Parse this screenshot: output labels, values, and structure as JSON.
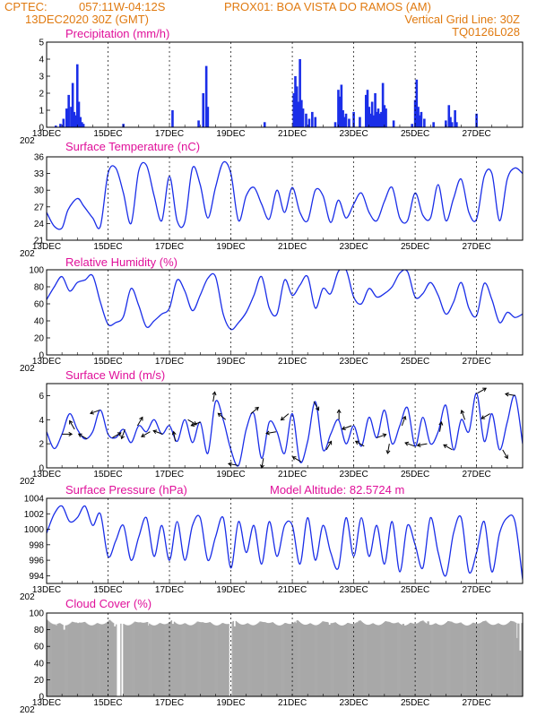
{
  "header": {
    "source": "CPTEC:",
    "coords": "057:11W-04:12S",
    "station": "PROX01: BOA VISTA DO RAMOS (AM)",
    "init_date": "13DEC2020 30Z (GMT)",
    "grid_note": "Vertical Grid Line: 30Z",
    "model_code": "TQ0126L028"
  },
  "colors": {
    "series": "#1a2ee8",
    "cloud": "#a8a8a8",
    "title": "#e0109a",
    "header": "#e07a10"
  },
  "x_labels": [
    "13DEC",
    "15DEC",
    "17DEC",
    "19DEC",
    "21DEC",
    "23DEC",
    "25DEC",
    "27DEC"
  ],
  "year_stub": "202",
  "chart_data": [
    {
      "type": "bar",
      "title": "Precipitation (mm/h)",
      "ylim": [
        0,
        5
      ],
      "yticks": [
        "0",
        "1",
        "2",
        "3",
        "4",
        "5"
      ],
      "x_start": 0,
      "x_end": 15.5,
      "events": [
        [
          0.3,
          0.1
        ],
        [
          0.45,
          0.2
        ],
        [
          0.55,
          0.5
        ],
        [
          0.65,
          1.1
        ],
        [
          0.72,
          1.9
        ],
        [
          0.8,
          1.2
        ],
        [
          0.85,
          2.6
        ],
        [
          0.9,
          0.9
        ],
        [
          0.95,
          0.7
        ],
        [
          1.0,
          3.7
        ],
        [
          1.05,
          1.5
        ],
        [
          1.1,
          0.6
        ],
        [
          1.15,
          0.3
        ],
        [
          1.2,
          0.2
        ],
        [
          2.5,
          0.2
        ],
        [
          4.1,
          1.0
        ],
        [
          4.95,
          0.4
        ],
        [
          5.1,
          2.0
        ],
        [
          5.2,
          3.6
        ],
        [
          5.25,
          1.2
        ],
        [
          7.1,
          0.3
        ],
        [
          8.05,
          2.0
        ],
        [
          8.1,
          3.0
        ],
        [
          8.15,
          2.4
        ],
        [
          8.2,
          1.5
        ],
        [
          8.25,
          4.0
        ],
        [
          8.3,
          1.6
        ],
        [
          8.35,
          1.1
        ],
        [
          8.45,
          0.8
        ],
        [
          8.55,
          0.5
        ],
        [
          8.65,
          0.9
        ],
        [
          8.75,
          0.6
        ],
        [
          9.4,
          0.3
        ],
        [
          9.5,
          2.2
        ],
        [
          9.55,
          1.8
        ],
        [
          9.6,
          2.5
        ],
        [
          9.65,
          1.0
        ],
        [
          9.7,
          0.6
        ],
        [
          9.75,
          0.8
        ],
        [
          9.85,
          0.5
        ],
        [
          10.0,
          0.9
        ],
        [
          10.2,
          0.6
        ],
        [
          10.4,
          1.9
        ],
        [
          10.45,
          2.2
        ],
        [
          10.5,
          1.2
        ],
        [
          10.55,
          0.8
        ],
        [
          10.6,
          1.5
        ],
        [
          10.65,
          0.7
        ],
        [
          10.7,
          2.0
        ],
        [
          10.75,
          0.9
        ],
        [
          10.8,
          1.1
        ],
        [
          10.85,
          0.8
        ],
        [
          10.9,
          0.9
        ],
        [
          10.95,
          2.6
        ],
        [
          11.0,
          1.3
        ],
        [
          11.05,
          1.1
        ],
        [
          11.3,
          0.4
        ],
        [
          11.9,
          0.2
        ],
        [
          12.0,
          1.6
        ],
        [
          12.05,
          2.8
        ],
        [
          12.1,
          1.2
        ],
        [
          12.15,
          0.7
        ],
        [
          12.2,
          0.9
        ],
        [
          12.3,
          0.5
        ],
        [
          12.6,
          0.3
        ],
        [
          13.0,
          0.4
        ],
        [
          13.1,
          1.3
        ],
        [
          13.15,
          0.6
        ],
        [
          13.2,
          0.3
        ],
        [
          13.3,
          1.0
        ],
        [
          13.35,
          0.3
        ],
        [
          14.0,
          0.8
        ]
      ]
    },
    {
      "type": "line",
      "title": "Surface Temperature (nC)",
      "ylim": [
        21,
        36
      ],
      "yticks": [
        "21",
        "24",
        "27",
        "30",
        "33",
        "36"
      ],
      "x": [
        0.0,
        0.25,
        0.5,
        0.7,
        1.0,
        1.2,
        1.5,
        1.75,
        2.0,
        2.25,
        2.5,
        2.75,
        3.0,
        3.25,
        3.5,
        3.75,
        4.0,
        4.25,
        4.5,
        4.75,
        5.0,
        5.25,
        5.5,
        5.75,
        6.0,
        6.25,
        6.5,
        6.75,
        7.0,
        7.25,
        7.5,
        7.75,
        8.0,
        8.25,
        8.5,
        8.75,
        9.0,
        9.25,
        9.5,
        9.75,
        10.0,
        10.25,
        10.5,
        10.75,
        11.0,
        11.25,
        11.5,
        11.75,
        12.0,
        12.25,
        12.5,
        12.75,
        13.0,
        13.25,
        13.5,
        13.75,
        14.0,
        14.25,
        14.5,
        14.75,
        15.0,
        15.25,
        15.5
      ],
      "series": [
        {
          "values": [
            26.0,
            23.5,
            23.2,
            26.5,
            28.5,
            27.2,
            25.0,
            23.5,
            33.0,
            34.0,
            29.5,
            24.0,
            33.5,
            34.5,
            29.0,
            24.5,
            32.5,
            24.5,
            24.3,
            34.0,
            31.0,
            25.0,
            30.5,
            35.0,
            33.0,
            24.5,
            29.0,
            30.5,
            27.5,
            24.8,
            30.0,
            26.0,
            30.5,
            26.0,
            24.5,
            30.0,
            29.0,
            24.2,
            28.2,
            25.0,
            27.5,
            29.5,
            26.0,
            24.5,
            28.0,
            30.5,
            25.0,
            24.5,
            29.5,
            25.5,
            25.0,
            31.0,
            24.5,
            28.5,
            32.0,
            26.0,
            24.8,
            32.5,
            33.0,
            24.5,
            32.0,
            34.0,
            33.0
          ]
        }
      ]
    },
    {
      "type": "line",
      "title": "Relative Humidity (%)",
      "ylim": [
        0,
        100
      ],
      "yticks": [
        "0",
        "20",
        "40",
        "60",
        "80",
        "100"
      ],
      "x": [
        0.0,
        0.25,
        0.5,
        0.75,
        1.0,
        1.25,
        1.5,
        1.75,
        2.0,
        2.25,
        2.5,
        2.75,
        3.0,
        3.25,
        3.5,
        3.75,
        4.0,
        4.25,
        4.5,
        4.75,
        5.0,
        5.25,
        5.5,
        5.75,
        6.0,
        6.25,
        6.5,
        6.75,
        7.0,
        7.25,
        7.5,
        7.75,
        8.0,
        8.25,
        8.5,
        8.75,
        9.0,
        9.25,
        9.5,
        9.75,
        10.0,
        10.25,
        10.5,
        10.75,
        11.0,
        11.25,
        11.5,
        11.75,
        12.0,
        12.25,
        12.5,
        12.75,
        13.0,
        13.25,
        13.5,
        13.75,
        14.0,
        14.25,
        14.5,
        14.75,
        15.0,
        15.25,
        15.5
      ],
      "series": [
        {
          "values": [
            65,
            80,
            92,
            75,
            85,
            88,
            93,
            62,
            36,
            38,
            45,
            78,
            58,
            33,
            40,
            48,
            55,
            88,
            75,
            52,
            70,
            90,
            92,
            48,
            30,
            38,
            50,
            70,
            92,
            55,
            48,
            88,
            70,
            82,
            92,
            55,
            78,
            72,
            98,
            100,
            68,
            60,
            78,
            68,
            72,
            80,
            96,
            98,
            68,
            72,
            85,
            70,
            48,
            62,
            85,
            55,
            46,
            84,
            65,
            38,
            50,
            44,
            48
          ]
        }
      ]
    },
    {
      "type": "line",
      "title": "Surface Wind (m/s)",
      "ylim": [
        0,
        7
      ],
      "yticks": [
        "0",
        "2",
        "4",
        "6"
      ],
      "x": [
        0.0,
        0.25,
        0.5,
        0.75,
        1.0,
        1.25,
        1.5,
        1.75,
        2.0,
        2.25,
        2.5,
        2.75,
        3.0,
        3.25,
        3.5,
        3.75,
        4.0,
        4.25,
        4.5,
        4.75,
        5.0,
        5.25,
        5.5,
        5.75,
        6.0,
        6.25,
        6.5,
        6.75,
        7.0,
        7.25,
        7.5,
        7.75,
        8.0,
        8.25,
        8.5,
        8.75,
        9.0,
        9.25,
        9.5,
        9.75,
        10.0,
        10.25,
        10.5,
        10.75,
        11.0,
        11.25,
        11.5,
        11.75,
        12.0,
        12.25,
        12.5,
        12.75,
        13.0,
        13.25,
        13.5,
        13.75,
        14.0,
        14.25,
        14.5,
        14.75,
        15.0,
        15.25,
        15.5
      ],
      "series": [
        {
          "values": [
            3.0,
            1.6,
            2.8,
            4.5,
            3.2,
            2.4,
            3.0,
            4.8,
            2.8,
            2.5,
            3.2,
            2.1,
            3.5,
            3.0,
            4.0,
            2.8,
            3.5,
            2.2,
            4.0,
            2.1,
            3.8,
            1.2,
            5.5,
            4.0,
            1.5,
            0.2,
            3.2,
            4.5,
            0.8,
            3.8,
            3.0,
            1.2,
            4.5,
            0.5,
            2.2,
            5.5,
            1.5,
            2.8,
            4.0,
            2.0,
            3.5,
            1.8,
            4.2,
            2.5,
            4.8,
            2.0,
            3.5,
            5.0,
            1.8,
            4.2,
            2.0,
            3.0,
            5.2,
            1.5,
            4.0,
            3.0,
            6.2,
            2.2,
            4.5,
            1.5,
            3.8,
            6.0,
            2.0
          ]
        }
      ],
      "vector_dirs_deg": [
        0,
        120,
        150,
        200,
        30,
        250,
        60,
        210,
        160,
        100,
        330,
        200,
        80,
        140,
        170,
        40,
        260,
        190,
        220,
        150,
        300,
        60,
        90,
        200,
        150,
        20,
        260,
        70,
        160,
        190,
        80,
        150,
        110,
        30,
        210,
        300,
        170,
        230
      ]
    },
    {
      "type": "line",
      "title": "Surface Pressure (hPa)",
      "subtitle": "Model Altitude: 82.5724 m",
      "ylim": [
        993,
        1004
      ],
      "yticks": [
        "994",
        "996",
        "998",
        "1000",
        "1002",
        "1004"
      ],
      "x": [
        0.0,
        0.25,
        0.5,
        0.75,
        1.0,
        1.25,
        1.5,
        1.75,
        2.0,
        2.25,
        2.5,
        2.75,
        3.0,
        3.25,
        3.5,
        3.75,
        4.0,
        4.25,
        4.5,
        4.75,
        5.0,
        5.25,
        5.5,
        5.75,
        6.0,
        6.25,
        6.5,
        6.75,
        7.0,
        7.25,
        7.5,
        7.75,
        8.0,
        8.25,
        8.5,
        8.75,
        9.0,
        9.25,
        9.5,
        9.75,
        10.0,
        10.25,
        10.5,
        10.75,
        11.0,
        11.25,
        11.5,
        11.75,
        12.0,
        12.25,
        12.5,
        12.75,
        13.0,
        13.25,
        13.5,
        13.75,
        14.0,
        14.25,
        14.5,
        14.75,
        15.0,
        15.25,
        15.5
      ],
      "series": [
        {
          "values": [
            999.5,
            1002.0,
            1003.0,
            1001.0,
            1001.5,
            1003.0,
            1000.5,
            1002.0,
            996.5,
            998.5,
            1000.5,
            996.0,
            999.0,
            1001.5,
            996.5,
            1000.5,
            996.0,
            1001.0,
            996.0,
            1000.5,
            1001.5,
            996.0,
            999.0,
            1001.5,
            995.0,
            1001.0,
            997.0,
            1000.5,
            995.5,
            1001.0,
            996.5,
            1000.5,
            1000.5,
            995.5,
            1001.5,
            996.0,
            1000.5,
            997.0,
            995.0,
            1001.5,
            996.5,
            1001.5,
            996.5,
            1000.5,
            995.5,
            1001.0,
            994.5,
            1000.5,
            998.0,
            995.0,
            1001.5,
            997.0,
            994.0,
            999.5,
            1001.5,
            994.5,
            997.0,
            1001.0,
            994.5,
            999.5,
            1001.5,
            1001.0,
            993.5
          ]
        }
      ]
    },
    {
      "type": "bar",
      "title": "Cloud Cover (%)",
      "ylim": [
        0,
        100
      ],
      "yticks": [
        "0",
        "20",
        "40",
        "60",
        "80",
        "100"
      ],
      "base_level": 92,
      "dropouts": [
        [
          0.3,
          85
        ],
        [
          0.55,
          80
        ],
        [
          1.0,
          88
        ],
        [
          2.2,
          84
        ],
        [
          2.3,
          0
        ],
        [
          2.35,
          0
        ],
        [
          2.45,
          0
        ],
        [
          3.3,
          85
        ],
        [
          4.1,
          87
        ],
        [
          5.95,
          0
        ],
        [
          6.0,
          0
        ],
        [
          6.1,
          84
        ],
        [
          8.1,
          88
        ],
        [
          9.2,
          86
        ],
        [
          10.1,
          89
        ],
        [
          11.6,
          87
        ],
        [
          12.4,
          90
        ],
        [
          15.3,
          70
        ],
        [
          15.4,
          55
        ]
      ]
    }
  ]
}
